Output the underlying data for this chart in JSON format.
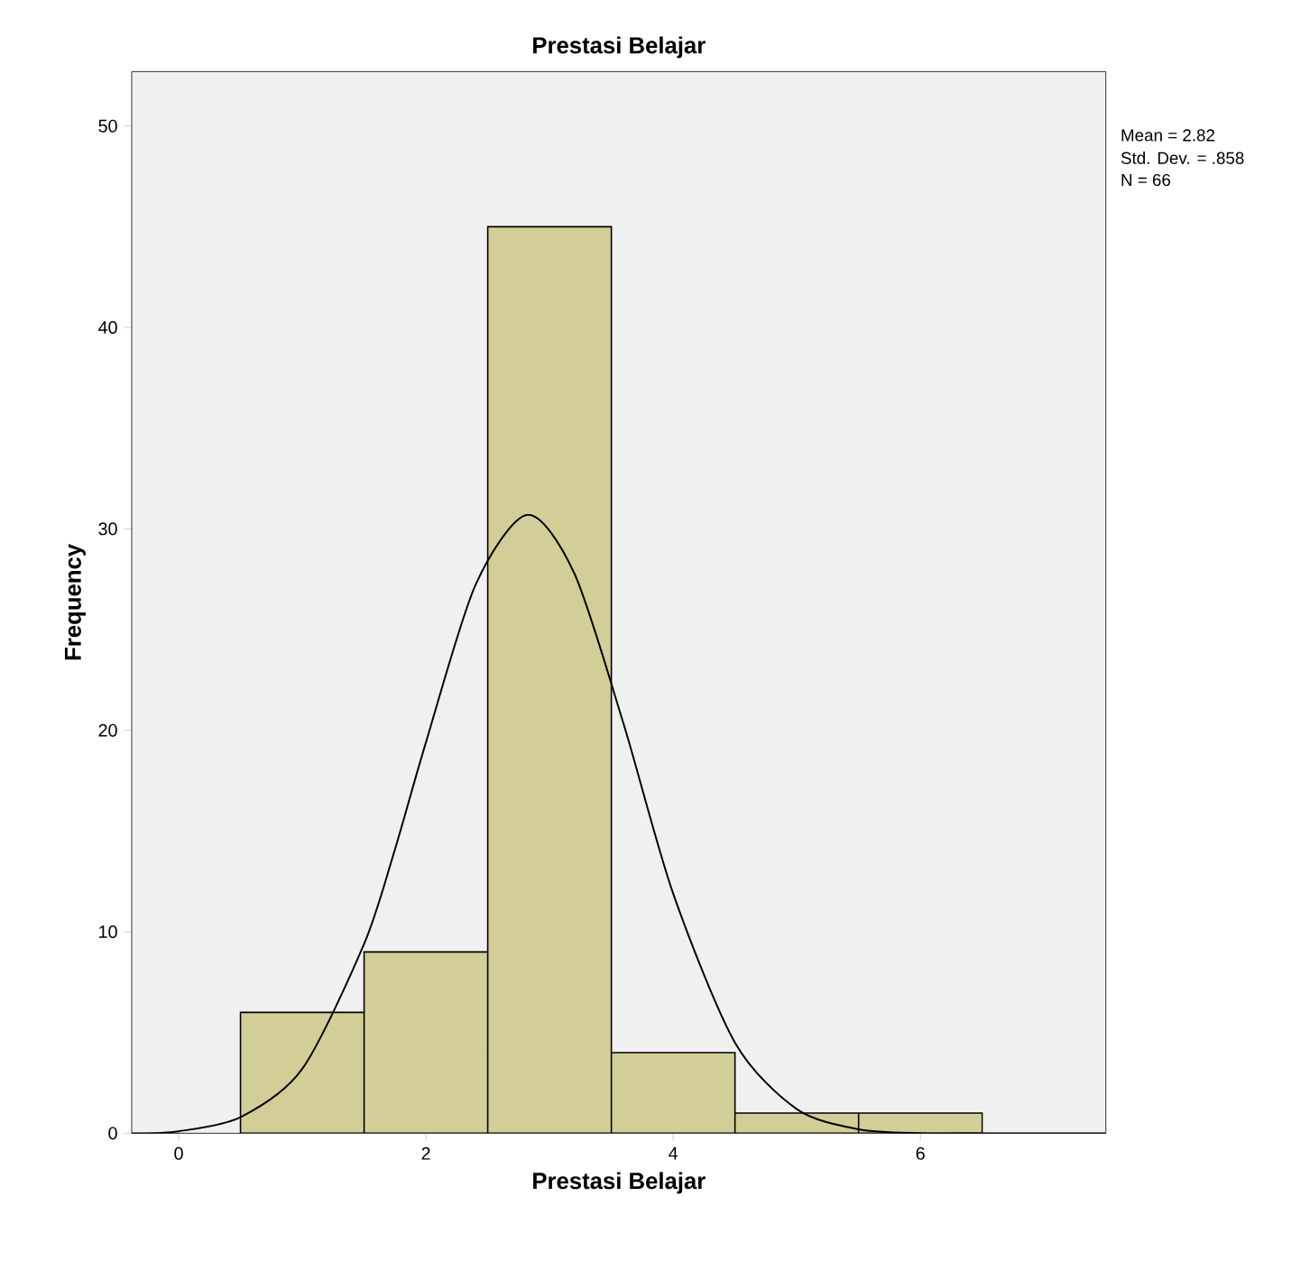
{
  "chart_data": {
    "type": "histogram",
    "title": "Prestasi Belajar",
    "xlabel": "Prestasi Belajar",
    "ylabel": "Frequency",
    "bins": [
      0.5,
      1.5,
      2.5,
      3.5,
      4.5,
      5.5,
      6.5
    ],
    "values": [
      6,
      9,
      45,
      4,
      1,
      1
    ],
    "color": "#d3ce97",
    "series": [
      {
        "type": "line",
        "color": "#000000",
        "x": [
          -0.38,
          0,
          0.5,
          1,
          1.5,
          1.75,
          2,
          2.4,
          2.82,
          3.2,
          3.6,
          4,
          4.5,
          5,
          5.5,
          6,
          6.5,
          7.5
        ],
        "values": [
          0,
          0.1,
          0.8,
          3.2,
          9.4,
          14.1,
          19.4,
          27.2,
          30.7,
          27.8,
          20.3,
          11.9,
          4.5,
          1.2,
          0.2,
          0,
          0,
          0
        ]
      }
    ],
    "xlim": [
      -0.38,
      7.5
    ],
    "ylim": [
      0,
      52.7
    ],
    "xticks": [
      0,
      2,
      4,
      6
    ],
    "yticks": [
      0,
      10,
      20,
      30,
      40,
      50
    ],
    "grid": false,
    "annotations": [
      "Mean = 2.82",
      "Std. Dev. = .858",
      "N = 66"
    ]
  }
}
